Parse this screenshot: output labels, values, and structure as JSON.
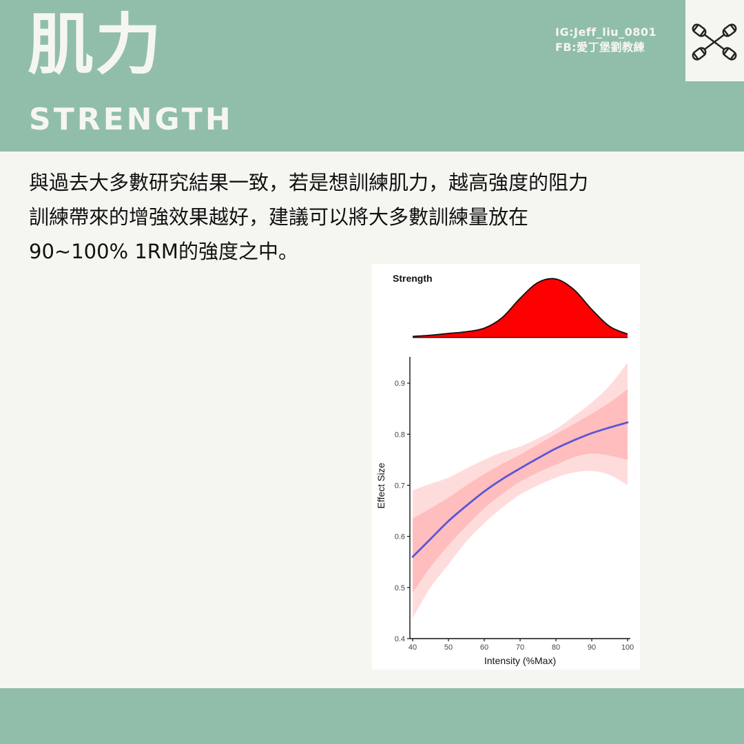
{
  "header": {
    "title_zh": "肌力",
    "title_en": "STRENGTH",
    "instagram": "IG:Jeff_liu_0801",
    "facebook": "FB:愛丁堡劉教練",
    "logo_icon": "crossed-dumbbells-icon"
  },
  "body": {
    "line1": "與過去大多數研究結果一致，若是想訓練肌力，越高強度的阻力",
    "line2": "訓練帶來的增強效果越好，建議可以將大多數訓練量放在",
    "line3": "90~100% 1RM的強度之中。"
  },
  "colors": {
    "accent": "#90beaa",
    "background": "#f6f6f1",
    "density_fill": "#ff0000",
    "line": "#5a55d6",
    "band_inner": "#ffbdbd",
    "band_outer": "#ffdcdc"
  },
  "chart_data": [
    {
      "type": "area",
      "title": "Strength",
      "x": [
        40,
        45,
        50,
        55,
        60,
        65,
        70,
        75,
        80,
        85,
        90,
        95,
        100
      ],
      "values": [
        0.02,
        0.04,
        0.07,
        0.1,
        0.16,
        0.34,
        0.67,
        0.94,
        1.0,
        0.82,
        0.48,
        0.19,
        0.06
      ],
      "xlim": [
        40,
        100
      ]
    },
    {
      "type": "line",
      "xlabel": "Intensity (%Max)",
      "ylabel": "Effect Size",
      "xlim": [
        40,
        100
      ],
      "ylim": [
        0.4,
        0.95
      ],
      "xticks": [
        40,
        50,
        60,
        70,
        80,
        90,
        100
      ],
      "yticks": [
        0.4,
        0.5,
        0.6,
        0.7,
        0.8,
        0.9
      ],
      "grid": false,
      "x": [
        40,
        45,
        50,
        55,
        60,
        65,
        70,
        75,
        80,
        85,
        90,
        95,
        100
      ],
      "estimate": [
        0.56,
        0.595,
        0.63,
        0.66,
        0.688,
        0.712,
        0.733,
        0.753,
        0.772,
        0.788,
        0.802,
        0.813,
        0.823
      ],
      "ci_inner_lower": [
        0.49,
        0.54,
        0.583,
        0.62,
        0.655,
        0.683,
        0.707,
        0.725,
        0.74,
        0.755,
        0.762,
        0.758,
        0.75
      ],
      "ci_inner_upper": [
        0.635,
        0.655,
        0.676,
        0.7,
        0.722,
        0.742,
        0.76,
        0.78,
        0.8,
        0.82,
        0.84,
        0.862,
        0.888
      ],
      "ci_outer_lower": [
        0.44,
        0.5,
        0.545,
        0.59,
        0.626,
        0.656,
        0.682,
        0.7,
        0.715,
        0.725,
        0.728,
        0.72,
        0.7
      ],
      "ci_outer_upper": [
        0.69,
        0.703,
        0.715,
        0.733,
        0.75,
        0.765,
        0.776,
        0.792,
        0.81,
        0.835,
        0.862,
        0.895,
        0.94
      ]
    }
  ]
}
